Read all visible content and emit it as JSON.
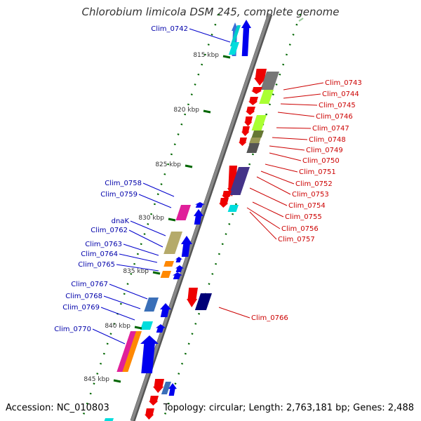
{
  "title": "Chlorobium limicola DSM 245, complete genome",
  "accession": "Accession: NC_010803",
  "topology": "Topology: circular; Length: 2,763,181 bp; Genes: 2,488",
  "colors": {
    "backbone": "#888888",
    "forward_label": "#0000aa",
    "reverse_label": "#cc0000",
    "tick": "#006600",
    "tick_label": "#333333"
  },
  "ticks": [
    {
      "label": "815 kbp"
    },
    {
      "label": "820 kbp"
    },
    {
      "label": "825 kbp"
    },
    {
      "label": "830 kbp"
    },
    {
      "label": "835 kbp"
    },
    {
      "label": "840 kbp"
    },
    {
      "label": "845 kbp"
    }
  ],
  "forward_labels": [
    "Clim_0742",
    "Clim_0758",
    "Clim_0759",
    "dnaK",
    "Clim_0762",
    "Clim_0763",
    "Clim_0764",
    "Clim_0765",
    "Clim_0767",
    "Clim_0768",
    "Clim_0769",
    "Clim_0770"
  ],
  "reverse_labels": [
    "Clim_0743",
    "Clim_0744",
    "Clim_0745",
    "Clim_0746",
    "Clim_0747",
    "Clim_0748",
    "Clim_0749",
    "Clim_0750",
    "Clim_0751",
    "Clim_0752",
    "Clim_0753",
    "Clim_0754",
    "Clim_0755",
    "Clim_0756",
    "Clim_0757",
    "Clim_0766"
  ]
}
